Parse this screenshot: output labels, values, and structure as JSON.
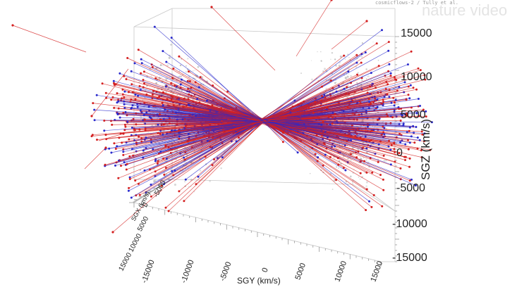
{
  "watermark": "nature video",
  "caption_text": "cosmicflows-2 / Tully et al.",
  "chart_data": {
    "type": "scatter",
    "title": "",
    "xlabel": "SGX (km/s)",
    "ylabel": "SGY (km/s)",
    "zlabel": "SGZ (km/s)",
    "z_ticks": [
      "15000",
      "10000",
      "5000",
      "0",
      "-5000",
      "-10000",
      "-15000"
    ],
    "y_ticks": [
      "-15000",
      "-10000",
      "-5000",
      "0",
      "5000",
      "10000",
      "15000"
    ],
    "x_ticks": [
      "-5000",
      "0",
      "5000",
      "10000",
      "15000"
    ],
    "zlim": [
      -15000,
      15000
    ],
    "ylim": [
      -15000,
      15000
    ],
    "xlim": [
      -15000,
      15000
    ],
    "grid": false,
    "series": [
      {
        "color": "#d42020"
      },
      {
        "color": "#2a2acc"
      },
      {
        "color": "#9a9a9a"
      }
    ]
  }
}
